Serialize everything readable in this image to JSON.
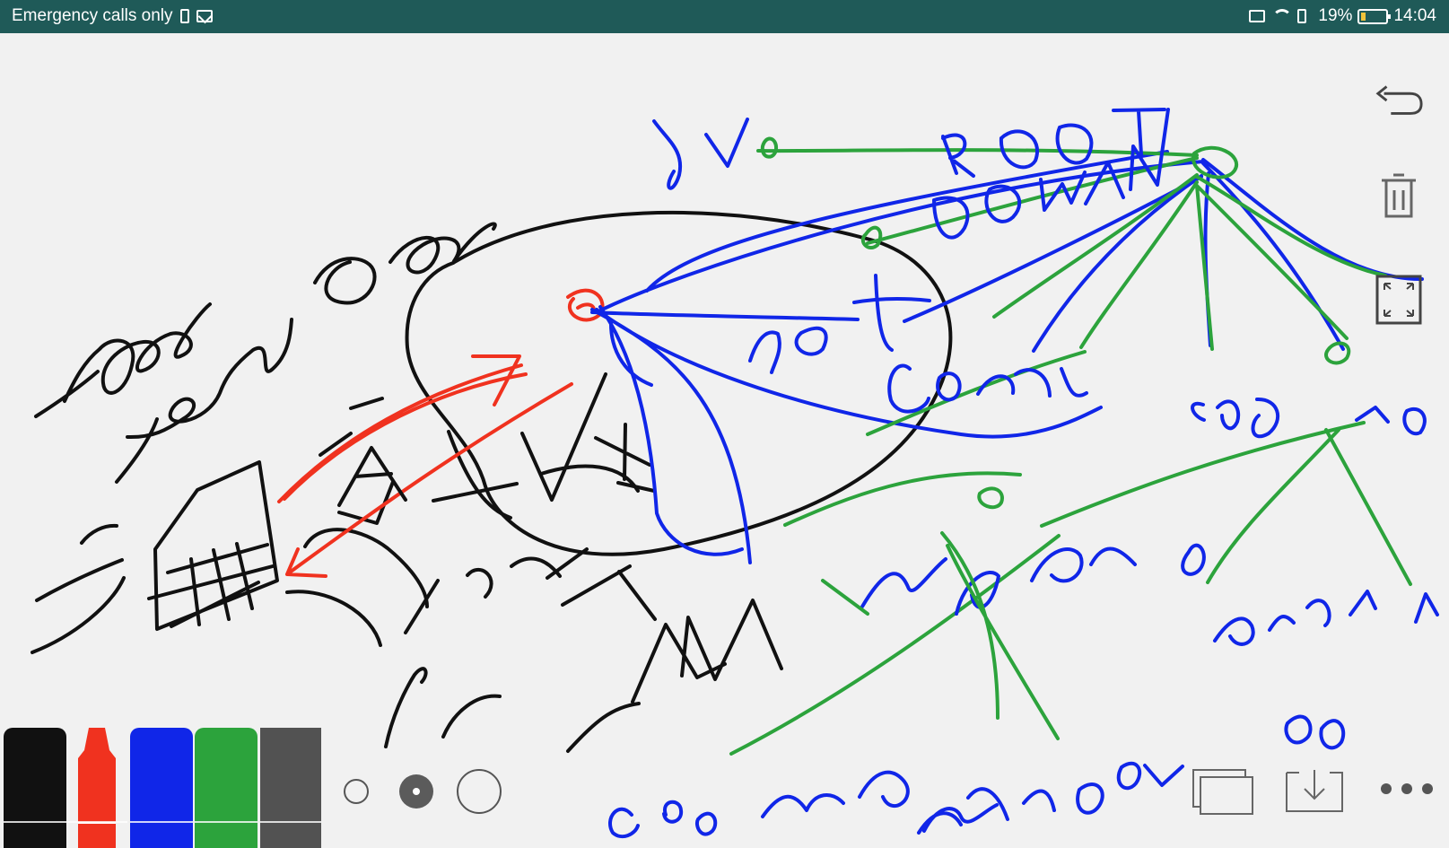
{
  "status_bar": {
    "left_text": "Emergency calls only",
    "battery_percent": "19%",
    "time": "14:04",
    "icons": [
      "sim-card-icon",
      "mail-icon",
      "cast-icon",
      "wifi-icon",
      "signal-icon",
      "battery-icon"
    ]
  },
  "handwriting": {
    "domain_left": "www",
    "domain_mid": "terrani.com.",
    "dns": "DNS",
    "existent": "existent",
    "nivel": "nivel",
    "lan": "LAN",
    "if": "if",
    "root": "ROOT",
    "domain": "DOMAIN",
    "net": "net",
    "com": "com",
    "ro": ".ro",
    "org": ".org",
    "usbdy": "usbdy.v",
    "praw": "prdw",
    "usbd": "usbd",
    "cos": "cos",
    "www": "www"
  },
  "tools": {
    "undo_icon": "undo-icon",
    "delete_icon": "trash-icon",
    "expand_icon": "expand-icon",
    "pen_colors": [
      "#111111",
      "#f0321f",
      "#1026e8",
      "#2ca33c",
      "#525252"
    ],
    "size_options": [
      "small",
      "medium",
      "large"
    ],
    "selected_size": "medium",
    "page_icon": "pages-icon",
    "download_icon": "download-icon",
    "more_icon": "more-icon"
  }
}
